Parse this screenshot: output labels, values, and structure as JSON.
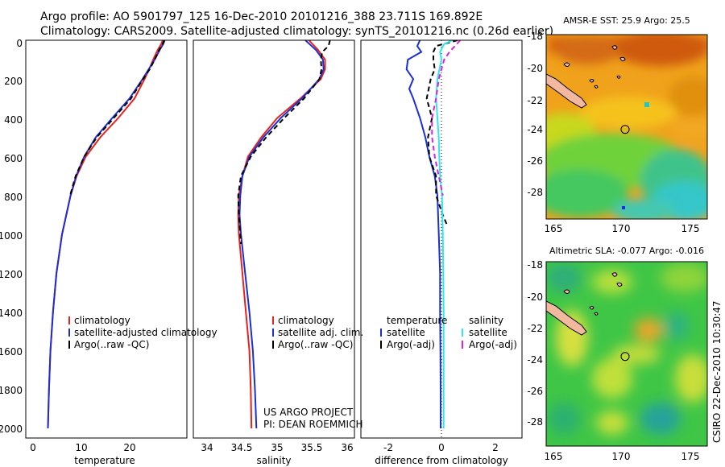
{
  "header": {
    "line1": "Argo profile: AO 5901797_125 16-Dec-2010 20101216_388 23.711S 169.892E",
    "line2": "Climatology: CARS2009. Satellite-adjusted climatology: synTS_20101216.nc (0.26d earlier)"
  },
  "credit": {
    "line1": "US ARGO PROJECT",
    "line2": "PI: DEAN ROEMMICH"
  },
  "timestamp": "CSIRO 22-Dec-2010 10:30:47",
  "colors": {
    "red": "#e8221b",
    "blue": "#1a2fd6",
    "black": "#000000",
    "cyan": "#2fe8ee",
    "magenta": "#dd20dd"
  },
  "depth_ticks": [
    "0",
    "200",
    "400",
    "600",
    "800",
    "1000",
    "1200",
    "1400",
    "1600",
    "1800",
    "2000"
  ],
  "chart_data": [
    {
      "type": "line",
      "title": "",
      "xlabel": "temperature",
      "ylabel": "",
      "xlim": [
        -2,
        30
      ],
      "ylim": [
        2050,
        0
      ],
      "xticks": [
        "0",
        "10",
        "20"
      ],
      "series": [
        {
          "name": "climatology",
          "color": "red",
          "dash": "",
          "depth": [
            0,
            20,
            50,
            100,
            150,
            200,
            300,
            400,
            500,
            600,
            700,
            800,
            1000,
            1200,
            1400,
            1600,
            1800,
            2000
          ],
          "values": [
            25.2,
            24.9,
            24.2,
            23.3,
            22.5,
            21.6,
            19.6,
            16.4,
            12.8,
            9.9,
            8.1,
            6.9,
            5.2,
            4.1,
            3.4,
            2.9,
            2.6,
            2.4
          ]
        },
        {
          "name": "satellite-adjusted climatology",
          "color": "blue",
          "dash": "",
          "depth": [
            0,
            20,
            50,
            100,
            150,
            200,
            300,
            400,
            500,
            600,
            700,
            800,
            1000,
            1200,
            1400,
            1600,
            1800,
            2000
          ],
          "values": [
            25.6,
            25.3,
            24.6,
            23.6,
            22.4,
            21.2,
            18.6,
            15.2,
            11.9,
            9.6,
            8.0,
            6.9,
            5.2,
            4.1,
            3.4,
            2.9,
            2.6,
            2.4
          ]
        },
        {
          "name": "Argo(..raw -QC)",
          "color": "black",
          "dash": "6,4",
          "depth": [
            0,
            20,
            50,
            100,
            150,
            200,
            300,
            400,
            500,
            600,
            700,
            800
          ],
          "values": [
            25.5,
            25.2,
            24.5,
            23.6,
            22.6,
            21.3,
            18.9,
            15.5,
            12.1,
            9.6,
            7.9,
            6.8
          ]
        }
      ],
      "legend": [
        "climatology",
        "satellite-adjusted climatology",
        "Argo(..raw -QC)"
      ]
    },
    {
      "type": "line",
      "title": "",
      "xlabel": "salinity",
      "ylabel": "",
      "xlim": [
        33.8,
        36.1
      ],
      "ylim": [
        2050,
        0
      ],
      "xticks": [
        "34",
        "34.5",
        "35",
        "35.5",
        "36"
      ],
      "series": [
        {
          "name": "climatology",
          "color": "red",
          "dash": "",
          "depth": [
            0,
            50,
            100,
            150,
            200,
            300,
            400,
            500,
            600,
            700,
            800,
            900,
            1000,
            1200,
            1400,
            1600,
            1800,
            2000
          ],
          "values": [
            35.45,
            35.58,
            35.68,
            35.68,
            35.62,
            35.33,
            35.0,
            34.77,
            34.58,
            34.5,
            34.45,
            34.44,
            34.45,
            34.5,
            34.55,
            34.6,
            34.62,
            34.63
          ]
        },
        {
          "name": "satellite adj. clim.",
          "color": "blue",
          "dash": "",
          "depth": [
            0,
            50,
            100,
            150,
            200,
            300,
            400,
            500,
            600,
            700,
            800,
            900,
            1000,
            1200,
            1400,
            1600,
            1800,
            2000
          ],
          "values": [
            35.4,
            35.55,
            35.65,
            35.66,
            35.6,
            35.35,
            35.05,
            34.8,
            34.6,
            34.5,
            34.47,
            34.46,
            34.48,
            34.54,
            34.6,
            34.65,
            34.68,
            34.7
          ]
        },
        {
          "name": "Argo(..raw -QC)",
          "color": "black",
          "dash": "6,4",
          "depth": [
            0,
            30,
            60,
            100,
            150,
            200,
            300,
            400,
            500,
            600,
            700,
            800,
            900,
            1000,
            1050
          ],
          "values": [
            35.75,
            35.73,
            35.64,
            35.62,
            35.63,
            35.6,
            35.38,
            35.1,
            34.84,
            34.62,
            34.48,
            34.44,
            34.45,
            34.47,
            34.48
          ]
        }
      ],
      "legend": [
        "climatology",
        "satellite adj. clim.",
        "Argo(..raw -QC)"
      ]
    },
    {
      "type": "line",
      "title": "",
      "xlabel": "difference from climatology",
      "ylabel": "",
      "xlim": [
        -3,
        3
      ],
      "ylim": [
        2050,
        0
      ],
      "xticks": [
        "-2",
        "0",
        "2"
      ],
      "series": [
        {
          "name": "temperature satellite",
          "color": "blue",
          "dash": "",
          "depth": [
            0,
            30,
            60,
            100,
            150,
            200,
            250,
            300,
            400,
            500,
            600,
            700,
            800,
            1000,
            1200,
            1400,
            1600,
            1800,
            2000
          ],
          "values": [
            -0.8,
            -0.9,
            -0.75,
            -1.25,
            -1.3,
            -1.05,
            -1.2,
            -1.05,
            -0.8,
            -0.6,
            -0.45,
            -0.25,
            -0.15,
            -0.1,
            -0.05,
            -0.05,
            -0.04,
            -0.03,
            -0.03
          ]
        },
        {
          "name": "temperature Argo(-adj)",
          "color": "black",
          "dash": "6,4",
          "depth": [
            0,
            30,
            60,
            100,
            150,
            200,
            300,
            400,
            500,
            600,
            700,
            800,
            900,
            950
          ],
          "values": [
            0.6,
            -0.2,
            -0.3,
            -0.3,
            -0.25,
            -0.4,
            -0.55,
            -0.35,
            -0.5,
            -0.45,
            -0.2,
            -0.2,
            0.05,
            0.2
          ]
        },
        {
          "name": "salinity satellite",
          "color": "cyan",
          "dash": "",
          "depth": [
            0,
            20,
            60,
            100,
            200,
            300,
            400,
            500,
            600,
            700,
            800,
            1000,
            1200,
            1400,
            1600,
            1800,
            2000
          ],
          "values": [
            0.4,
            0.1,
            -0.05,
            0.0,
            -0.15,
            -0.2,
            -0.15,
            -0.1,
            -0.08,
            -0.05,
            0.02,
            0.05,
            0.07,
            0.08,
            0.08,
            0.08,
            0.08
          ]
        },
        {
          "name": "salinity Argo(-adj)",
          "color": "magenta",
          "dash": "6,4",
          "depth": [
            0,
            30,
            60,
            100,
            200,
            300,
            400,
            500,
            600,
            700,
            800
          ],
          "values": [
            0.7,
            0.5,
            0.3,
            0.1,
            -0.1,
            -0.2,
            -0.35,
            -0.35,
            -0.25,
            -0.1,
            0.05
          ]
        }
      ],
      "legend_temperature": {
        "title": "temperature",
        "items": [
          "satellite",
          "Argo(-adj)"
        ]
      },
      "legend_salinity": {
        "title": "salinity",
        "items": [
          "satellite",
          "Argo(-adj)"
        ]
      }
    },
    {
      "type": "heatmap",
      "title": "AMSR-E SST: 25.9 Argo: 25.5",
      "xlabel": "",
      "ylabel": "",
      "xlim": [
        164.5,
        175.5
      ],
      "ylim": [
        -29.3,
        -17.8
      ],
      "xticks": [
        "165",
        "170",
        "175"
      ],
      "yticks": [
        "-18",
        "-20",
        "-22",
        "-24",
        "-26",
        "-28"
      ],
      "float_position": {
        "lon": 169.892,
        "lat": -23.711
      }
    },
    {
      "type": "heatmap",
      "title": "Altimetric SLA: -0.077 Argo: -0.016",
      "xlabel": "",
      "ylabel": "",
      "xlim": [
        164.5,
        175.5
      ],
      "ylim": [
        -29.3,
        -17.8
      ],
      "xticks": [
        "165",
        "170",
        "175"
      ],
      "yticks": [
        "-18",
        "-20",
        "-22",
        "-24",
        "-26",
        "-28"
      ],
      "float_position": {
        "lon": 169.892,
        "lat": -23.711
      }
    }
  ]
}
